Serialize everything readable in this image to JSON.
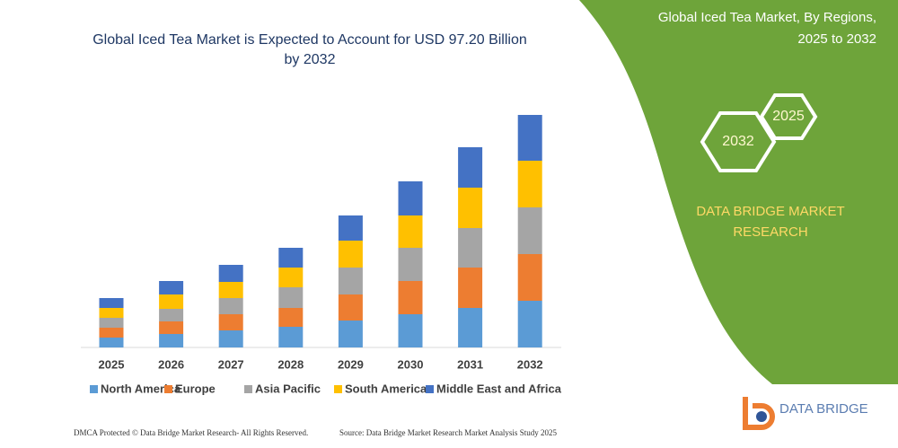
{
  "chart_data": {
    "type": "bar",
    "stacked": true,
    "title": "Global Iced Tea Market is Expected to Account for USD 97.20 Billion by 2032",
    "categories": [
      "2025",
      "2026",
      "2027",
      "2028",
      "2029",
      "2030",
      "2031",
      "2032"
    ],
    "series": [
      {
        "name": "North America",
        "color": "#5b9bd5",
        "values": [
          11,
          15,
          19,
          23,
          30,
          37,
          44,
          52
        ]
      },
      {
        "name": "Europe",
        "color": "#ed7d31",
        "values": [
          11,
          14,
          18,
          21,
          29,
          37,
          45,
          52
        ]
      },
      {
        "name": "Asia Pacific",
        "color": "#a5a5a5",
        "values": [
          11,
          14,
          18,
          23,
          30,
          37,
          44,
          52
        ]
      },
      {
        "name": "South America",
        "color": "#ffc000",
        "values": [
          11,
          16,
          18,
          22,
          30,
          36,
          45,
          52
        ]
      },
      {
        "name": "Middle East and Africa",
        "color": "#4472c4",
        "values": [
          11,
          15,
          19,
          22,
          28,
          38,
          45,
          51
        ]
      }
    ]
  },
  "panel": {
    "title_lines": [
      "Global Iced Tea Market, By Regions,",
      "2025 to 2032"
    ],
    "hexagons": [
      "2032",
      "2025"
    ],
    "brand_lines": [
      "DATA BRIDGE MARKET",
      "RESEARCH"
    ]
  },
  "logo": {
    "text": "DATA BRIDGE"
  },
  "footer": {
    "left": "DMCA Protected © Data Bridge Market Research-  All Rights Reserved.",
    "right": "Source: Data Bridge Market Research  Market Analysis Study 2025"
  }
}
